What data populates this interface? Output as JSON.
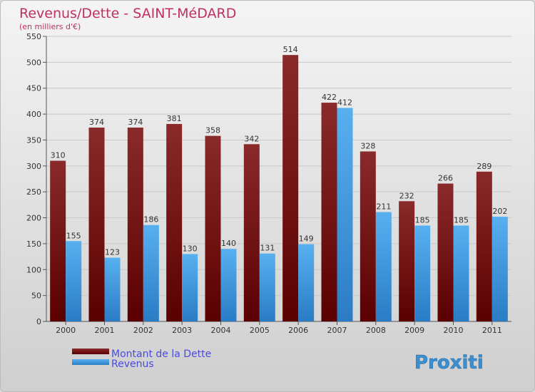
{
  "chart_data": {
    "type": "bar",
    "title": "Revenus/Dette - SAINT-MéDARD",
    "subtitle": "(en milliers d'€)",
    "categories": [
      "2000",
      "2001",
      "2002",
      "2003",
      "2004",
      "2005",
      "2006",
      "2007",
      "2008",
      "2009",
      "2010",
      "2011"
    ],
    "series": [
      {
        "name": "Montant de la Dette",
        "color": "#7a1414",
        "values": [
          310,
          374,
          374,
          381,
          358,
          342,
          514,
          422,
          328,
          232,
          266,
          289
        ]
      },
      {
        "name": "Revenus",
        "color": "#3d96e0",
        "values": [
          155,
          123,
          186,
          130,
          140,
          131,
          149,
          412,
          211,
          185,
          185,
          202
        ]
      }
    ],
    "ylim": [
      0,
      550
    ],
    "yticks": [
      0,
      50,
      100,
      150,
      200,
      250,
      300,
      350,
      400,
      450,
      500,
      550
    ],
    "grid": true,
    "legend_position": "bottom-left",
    "colors": {
      "title": "#c03060",
      "legend_text": "#4a4ae0",
      "axis_text": "#333333"
    }
  },
  "logo": {
    "text": "Proxiti"
  }
}
